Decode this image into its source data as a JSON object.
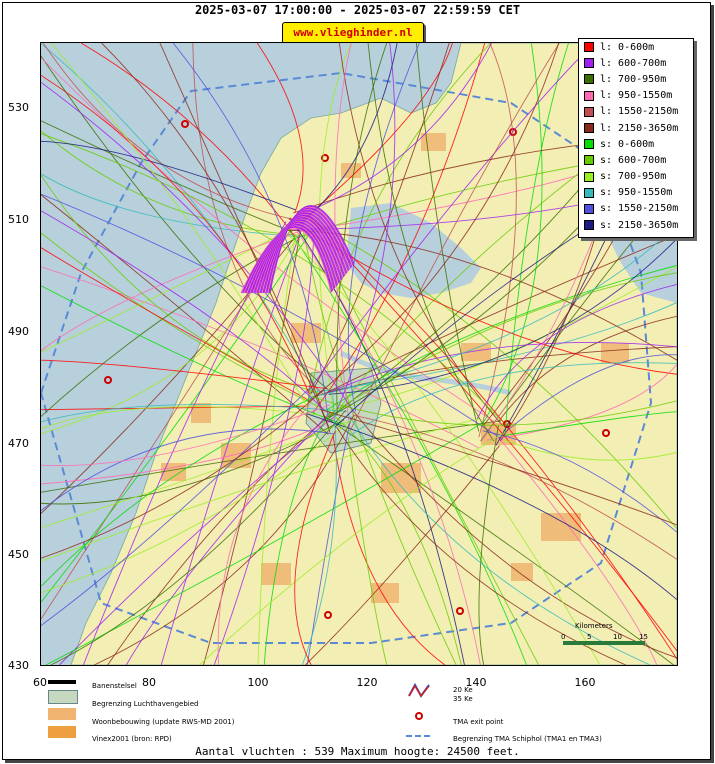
{
  "header": {
    "title": "2025-03-07 17:00:00 - 2025-03-07 22:59:59 CET",
    "site": "www.vlieghinder.nl"
  },
  "map": {
    "y_ticks": [
      "530",
      "510",
      "490",
      "470",
      "450",
      "430"
    ],
    "x_ticks": [
      "60",
      "80",
      "100",
      "120",
      "140",
      "160"
    ],
    "scale_label": "Kilometers",
    "scale_ticks": [
      "0",
      "5",
      "10",
      "15"
    ]
  },
  "legend": {
    "items": [
      {
        "label": "l: 0-600m",
        "color": "#ff0000"
      },
      {
        "label": "l: 600-700m",
        "color": "#a020f0"
      },
      {
        "label": "l: 700-950m",
        "color": "#3a6e00"
      },
      {
        "label": "l: 950-1550m",
        "color": "#ff69b4"
      },
      {
        "label": "l: 1550-2150m",
        "color": "#c05050"
      },
      {
        "label": "l: 2150-3650m",
        "color": "#8b2a1a"
      },
      {
        "label": "s: 0-600m",
        "color": "#00dd00"
      },
      {
        "label": "s: 600-700m",
        "color": "#66cc00"
      },
      {
        "label": "s: 700-950m",
        "color": "#99ee22"
      },
      {
        "label": "s: 950-1550m",
        "color": "#33bbbb"
      },
      {
        "label": "s: 1550-2150m",
        "color": "#5050dd"
      },
      {
        "label": "s: 2150-3650m",
        "color": "#1a1a80"
      }
    ]
  },
  "map_legend": {
    "banenstelsel": "Banenstelsel",
    "luchthaven": "Begrenzing Luchthavengebied",
    "woonbebouwing": "Woonbebouwing (update RWS-MD 2001)",
    "vinex": "Vinex2001 (bron: RPD)",
    "ke20": "20 Ke",
    "ke35": "35 Ke",
    "tma_exit": "TMA exit point",
    "tma_border": "Begrenzing TMA Schiphol  (TMA1 en TMA3)"
  },
  "footer": {
    "text": "Aantal vluchten : 539 Maximum hoogte: 24500 feet."
  }
}
